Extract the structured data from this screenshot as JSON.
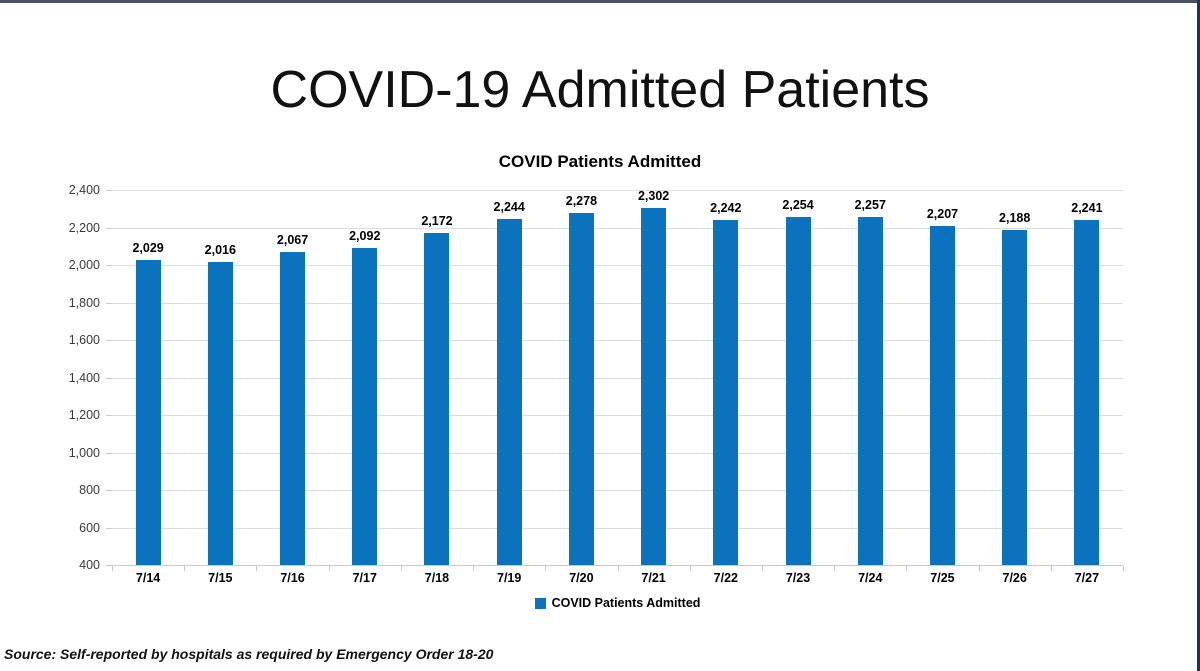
{
  "page": {
    "title": "COVID-19 Admitted Patients",
    "source_note": "Source: Self-reported by hospitals as required by Emergency Order 18-20"
  },
  "chart_data": {
    "type": "bar",
    "title": "COVID Patients Admitted",
    "categories": [
      "7/14",
      "7/15",
      "7/16",
      "7/17",
      "7/18",
      "7/19",
      "7/20",
      "7/21",
      "7/22",
      "7/23",
      "7/24",
      "7/25",
      "7/26",
      "7/27"
    ],
    "values": [
      2029,
      2016,
      2067,
      2092,
      2172,
      2244,
      2278,
      2302,
      2242,
      2254,
      2257,
      2207,
      2188,
      2241
    ],
    "value_labels": [
      "2,029",
      "2,016",
      "2,067",
      "2,092",
      "2,172",
      "2,244",
      "2,278",
      "2,302",
      "2,242",
      "2,254",
      "2,257",
      "2,207",
      "2,188",
      "2,241"
    ],
    "ylim": [
      400,
      2400
    ],
    "ytick_step": 200,
    "ytick_labels": [
      "400",
      "600",
      "800",
      "1,000",
      "1,200",
      "1,400",
      "1,600",
      "1,800",
      "2,000",
      "2,200",
      "2,400"
    ],
    "grid": true,
    "legend": [
      "COVID Patients Admitted"
    ],
    "legend_position": "bottom",
    "bar_color": "#0b72be",
    "xlabel": "",
    "ylabel": ""
  }
}
